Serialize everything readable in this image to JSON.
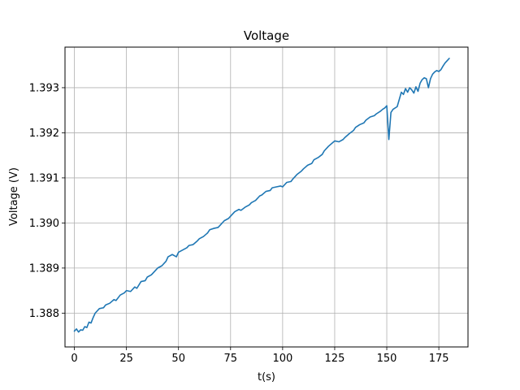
{
  "chart_data": {
    "type": "line",
    "title": "Voltage",
    "xlabel": "t(s)",
    "ylabel": "Voltage (V)",
    "xlim": [
      -4.5,
      189
    ],
    "ylim": [
      1.38725,
      1.3939
    ],
    "grid": true,
    "x_ticks": [
      0,
      25,
      50,
      75,
      100,
      125,
      150,
      175
    ],
    "x_tick_labels": [
      "0",
      "25",
      "50",
      "75",
      "100",
      "125",
      "150",
      "175"
    ],
    "y_ticks": [
      1.388,
      1.389,
      1.39,
      1.391,
      1.392,
      1.393
    ],
    "y_tick_labels": [
      "1.388",
      "1.389",
      "1.390",
      "1.391",
      "1.392",
      "1.393"
    ],
    "series": [
      {
        "color": "#1f77b4",
        "x": [
          0,
          1,
          2,
          3,
          4,
          5,
          6,
          7,
          8,
          9,
          10,
          12,
          14,
          15,
          17,
          19,
          20,
          22,
          24,
          25,
          27,
          29,
          30,
          32,
          34,
          35,
          37,
          39,
          40,
          42,
          44,
          45,
          47,
          49,
          50,
          52,
          54,
          55,
          57,
          59,
          60,
          62,
          64,
          65,
          67,
          69,
          70,
          72,
          74,
          75,
          77,
          79,
          80,
          82,
          84,
          85,
          87,
          89,
          90,
          92,
          94,
          95,
          97,
          99,
          100,
          102,
          104,
          105,
          107,
          109,
          110,
          112,
          114,
          115,
          117,
          119,
          120,
          122,
          124,
          125,
          127,
          129,
          130,
          132,
          134,
          135,
          137,
          139,
          140,
          142,
          144,
          145,
          147,
          148,
          149,
          150,
          151,
          152,
          153,
          155,
          157,
          158,
          159,
          160,
          161,
          162,
          163,
          164,
          165,
          166,
          167,
          168,
          169,
          170,
          171,
          172,
          173,
          174,
          175,
          176,
          177,
          178,
          179,
          180
        ],
        "y": [
          1.3876,
          1.38765,
          1.38758,
          1.38763,
          1.38762,
          1.3877,
          1.38768,
          1.3878,
          1.38778,
          1.3879,
          1.388,
          1.3881,
          1.38812,
          1.38818,
          1.38822,
          1.3883,
          1.38828,
          1.3884,
          1.38845,
          1.3885,
          1.38848,
          1.38858,
          1.38855,
          1.3887,
          1.38872,
          1.3888,
          1.38885,
          1.38895,
          1.389,
          1.38905,
          1.38915,
          1.38925,
          1.3893,
          1.38925,
          1.38935,
          1.3894,
          1.38945,
          1.3895,
          1.38952,
          1.3896,
          1.38965,
          1.3897,
          1.38978,
          1.38985,
          1.38988,
          1.3899,
          1.38995,
          1.39005,
          1.3901,
          1.39015,
          1.39025,
          1.3903,
          1.39028,
          1.39035,
          1.3904,
          1.39045,
          1.3905,
          1.3906,
          1.39062,
          1.3907,
          1.39072,
          1.39078,
          1.3908,
          1.39082,
          1.3908,
          1.3909,
          1.39092,
          1.39098,
          1.39108,
          1.39115,
          1.3912,
          1.39128,
          1.39132,
          1.3914,
          1.39145,
          1.39152,
          1.3916,
          1.3917,
          1.39178,
          1.39182,
          1.3918,
          1.39185,
          1.3919,
          1.39198,
          1.39205,
          1.39212,
          1.39218,
          1.39222,
          1.39228,
          1.39235,
          1.39238,
          1.39242,
          1.39248,
          1.39252,
          1.39255,
          1.3926,
          1.39185,
          1.39245,
          1.39252,
          1.39258,
          1.3929,
          1.39285,
          1.39298,
          1.3929,
          1.393,
          1.39295,
          1.39288,
          1.39302,
          1.39292,
          1.3931,
          1.39318,
          1.39322,
          1.3932,
          1.393,
          1.3932,
          1.3933,
          1.39335,
          1.39338,
          1.39336,
          1.3934,
          1.39348,
          1.39355,
          1.3936,
          1.39365
        ]
      }
    ]
  }
}
